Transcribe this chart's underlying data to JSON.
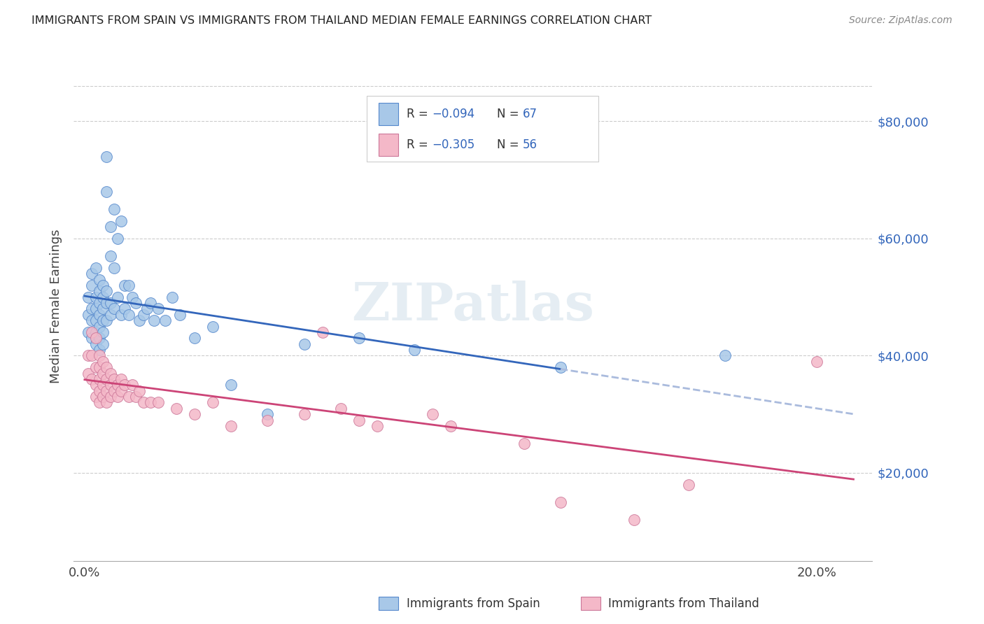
{
  "title": "IMMIGRANTS FROM SPAIN VS IMMIGRANTS FROM THAILAND MEDIAN FEMALE EARNINGS CORRELATION CHART",
  "source": "Source: ZipAtlas.com",
  "ylabel": "Median Female Earnings",
  "x_ticks": [
    0.0,
    0.04,
    0.08,
    0.12,
    0.16,
    0.2
  ],
  "x_tick_labels": [
    "0.0%",
    "",
    "",
    "",
    "",
    "20.0%"
  ],
  "y_ticks": [
    20000,
    40000,
    60000,
    80000
  ],
  "y_tick_labels": [
    "$20,000",
    "$40,000",
    "$60,000",
    "$80,000"
  ],
  "xlim": [
    -0.003,
    0.215
  ],
  "ylim": [
    5000,
    92000
  ],
  "watermark": "ZIPatlas",
  "spain_color": "#a8c8e8",
  "thailand_color": "#f4b8c8",
  "spain_edge_color": "#5588cc",
  "thailand_edge_color": "#cc7799",
  "spain_line_color": "#3366bb",
  "thailand_line_color": "#cc4477",
  "legend_text_color": "#3366bb",
  "spain_x": [
    0.001,
    0.001,
    0.001,
    0.002,
    0.002,
    0.002,
    0.002,
    0.002,
    0.003,
    0.003,
    0.003,
    0.003,
    0.003,
    0.003,
    0.004,
    0.004,
    0.004,
    0.004,
    0.004,
    0.004,
    0.004,
    0.005,
    0.005,
    0.005,
    0.005,
    0.005,
    0.005,
    0.006,
    0.006,
    0.006,
    0.006,
    0.006,
    0.007,
    0.007,
    0.007,
    0.007,
    0.008,
    0.008,
    0.008,
    0.009,
    0.009,
    0.01,
    0.01,
    0.011,
    0.011,
    0.012,
    0.012,
    0.013,
    0.014,
    0.015,
    0.016,
    0.017,
    0.018,
    0.019,
    0.02,
    0.022,
    0.024,
    0.026,
    0.03,
    0.035,
    0.04,
    0.05,
    0.06,
    0.075,
    0.09,
    0.13,
    0.175
  ],
  "spain_y": [
    50000,
    47000,
    44000,
    52000,
    48000,
    46000,
    54000,
    43000,
    55000,
    50000,
    48000,
    46000,
    44000,
    42000,
    53000,
    51000,
    49000,
    47000,
    45000,
    43000,
    41000,
    52000,
    50000,
    48000,
    46000,
    44000,
    42000,
    74000,
    68000,
    51000,
    49000,
    46000,
    62000,
    57000,
    49000,
    47000,
    65000,
    55000,
    48000,
    60000,
    50000,
    63000,
    47000,
    52000,
    48000,
    52000,
    47000,
    50000,
    49000,
    46000,
    47000,
    48000,
    49000,
    46000,
    48000,
    46000,
    50000,
    47000,
    43000,
    45000,
    35000,
    30000,
    42000,
    43000,
    41000,
    38000,
    40000
  ],
  "thailand_x": [
    0.001,
    0.001,
    0.002,
    0.002,
    0.002,
    0.003,
    0.003,
    0.003,
    0.003,
    0.004,
    0.004,
    0.004,
    0.004,
    0.004,
    0.005,
    0.005,
    0.005,
    0.005,
    0.006,
    0.006,
    0.006,
    0.006,
    0.007,
    0.007,
    0.007,
    0.008,
    0.008,
    0.009,
    0.009,
    0.01,
    0.01,
    0.011,
    0.012,
    0.013,
    0.014,
    0.015,
    0.016,
    0.018,
    0.02,
    0.025,
    0.03,
    0.035,
    0.04,
    0.05,
    0.06,
    0.065,
    0.07,
    0.075,
    0.08,
    0.095,
    0.1,
    0.12,
    0.13,
    0.15,
    0.165,
    0.2
  ],
  "thailand_y": [
    40000,
    37000,
    44000,
    40000,
    36000,
    43000,
    38000,
    35000,
    33000,
    40000,
    38000,
    36000,
    34000,
    32000,
    39000,
    37000,
    35000,
    33000,
    38000,
    36000,
    34000,
    32000,
    37000,
    35000,
    33000,
    36000,
    34000,
    35000,
    33000,
    36000,
    34000,
    35000,
    33000,
    35000,
    33000,
    34000,
    32000,
    32000,
    32000,
    31000,
    30000,
    32000,
    28000,
    29000,
    30000,
    44000,
    31000,
    29000,
    28000,
    30000,
    28000,
    25000,
    15000,
    12000,
    18000,
    39000
  ]
}
